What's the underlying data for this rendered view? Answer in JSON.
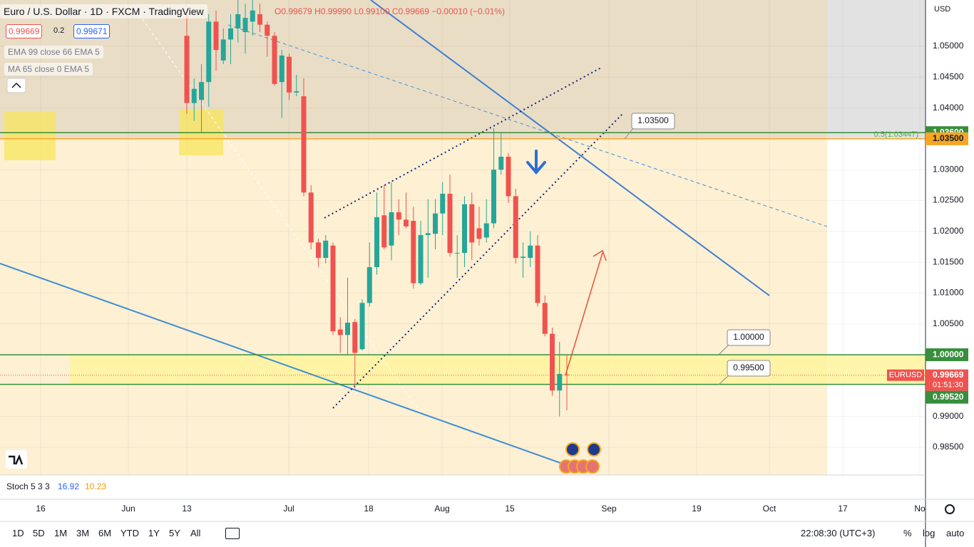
{
  "header": {
    "symbol": "Euro / U.S. Dollar · 1D · FXCM · TradingView",
    "open": "O0.99679",
    "high": "H0.99990",
    "low": "L0.99100",
    "close": "C0.99669",
    "change": "−0.00010 (−0.01%)",
    "sell": "0.99669",
    "spread": "0.2",
    "buy": "0.99671",
    "indicators": [
      "EMA 99 close 66 EMA 5",
      "MA 65 close 0 EMA 5"
    ]
  },
  "chart_data": {
    "type": "candlestick",
    "currency": "USD",
    "up_color": "#26a69a",
    "down_color": "#ef5350",
    "ylim": [
      0.9805,
      1.0575
    ],
    "yticks": [
      {
        "value": 1.05,
        "label": "1.05000"
      },
      {
        "value": 1.045,
        "label": "1.04500"
      },
      {
        "value": 1.04,
        "label": "1.04000"
      },
      {
        "value": 1.03,
        "label": "1.03000"
      },
      {
        "value": 1.025,
        "label": "1.02500"
      },
      {
        "value": 1.02,
        "label": "1.02000"
      },
      {
        "value": 1.015,
        "label": "1.01500"
      },
      {
        "value": 1.01,
        "label": "1.01000"
      },
      {
        "value": 1.005,
        "label": "1.00500"
      },
      {
        "value": 0.99,
        "label": "0.99000"
      },
      {
        "value": 0.985,
        "label": "0.98500"
      }
    ],
    "xticks": [
      "16",
      "Jun",
      "13",
      "Jul",
      "18",
      "Aug",
      "15",
      "Sep",
      "19",
      "Oct",
      "17",
      "No"
    ],
    "levels": [
      {
        "value": 1.036,
        "label": "1.03600",
        "color": "#388e3c"
      },
      {
        "value": 1.035,
        "label": "1.03500",
        "color": "#f5a623"
      },
      {
        "value": 1.0,
        "label": "1.00000",
        "color": "#388e3c"
      },
      {
        "value": 0.9952,
        "label": "0.99520",
        "color": "#388e3c"
      }
    ],
    "last": {
      "value": 0.99669,
      "label": "0.99669",
      "symbol": "EURUSD",
      "countdown": "01:51:30"
    },
    "fib_label": "0.5(1.03447)",
    "callouts": [
      "1.03500",
      "1.00000",
      "0.99500"
    ],
    "candles": [
      {
        "o": 1.0517,
        "h": 1.0552,
        "l": 1.039,
        "c": 1.0408
      },
      {
        "o": 1.0408,
        "h": 1.0448,
        "l": 1.0379,
        "c": 1.0431
      },
      {
        "o": 1.0413,
        "h": 1.0471,
        "l": 1.0361,
        "c": 1.0442
      },
      {
        "o": 1.0442,
        "h": 1.0552,
        "l": 1.0402,
        "c": 1.054
      },
      {
        "o": 1.054,
        "h": 1.0558,
        "l": 1.046,
        "c": 1.0494
      },
      {
        "o": 1.0477,
        "h": 1.0529,
        "l": 1.0471,
        "c": 1.0511
      },
      {
        "o": 1.0511,
        "h": 1.0552,
        "l": 1.0471,
        "c": 1.0529
      },
      {
        "o": 1.0529,
        "h": 1.0575,
        "l": 1.0506,
        "c": 1.0552
      },
      {
        "o": 1.0523,
        "h": 1.0569,
        "l": 1.0488,
        "c": 1.0546
      },
      {
        "o": 1.054,
        "h": 1.0575,
        "l": 1.0517,
        "c": 1.0558
      },
      {
        "o": 1.0552,
        "h": 1.0569,
        "l": 1.0523,
        "c": 1.0535
      },
      {
        "o": 1.0535,
        "h": 1.054,
        "l": 1.0483,
        "c": 1.0517
      },
      {
        "o": 1.0517,
        "h": 1.0523,
        "l": 1.0436,
        "c": 1.0439
      },
      {
        "o": 1.0442,
        "h": 1.0494,
        "l": 1.0384,
        "c": 1.0485
      },
      {
        "o": 1.0483,
        "h": 1.0488,
        "l": 1.0413,
        "c": 1.0425
      },
      {
        "o": 1.0425,
        "h": 1.0454,
        "l": 1.0419,
        "c": 1.0427
      },
      {
        "o": 1.0419,
        "h": 1.0448,
        "l": 1.0257,
        "c": 1.0263
      },
      {
        "o": 1.0263,
        "h": 1.0275,
        "l": 1.0171,
        "c": 1.0182
      },
      {
        "o": 1.0182,
        "h": 1.0188,
        "l": 1.0142,
        "c": 1.0157
      },
      {
        "o": 1.0157,
        "h": 1.0194,
        "l": 1.0148,
        "c": 1.0185
      },
      {
        "o": 1.0177,
        "h": 1.0182,
        "l": 1.0032,
        "c": 1.0038
      },
      {
        "o": 1.0041,
        "h": 1.0061,
        "l": 1.0003,
        "c": 1.0032
      },
      {
        "o": 1.0032,
        "h": 1.0125,
        "l": 1.0,
        "c": 1.0052
      },
      {
        "o": 1.0053,
        "h": 1.0058,
        "l": 0.9946,
        "c": 1.0003
      },
      {
        "o": 1.0009,
        "h": 1.009,
        "l": 1.0007,
        "c": 1.0084
      },
      {
        "o": 1.0084,
        "h": 1.0182,
        "l": 1.0078,
        "c": 1.0142
      },
      {
        "o": 1.0142,
        "h": 1.0263,
        "l": 1.013,
        "c": 1.0223
      },
      {
        "o": 1.0226,
        "h": 1.0275,
        "l": 1.0171,
        "c": 1.0174
      },
      {
        "o": 1.0177,
        "h": 1.028,
        "l": 1.0153,
        "c": 1.0231
      },
      {
        "o": 1.0231,
        "h": 1.0252,
        "l": 1.0194,
        "c": 1.0219
      },
      {
        "o": 1.0219,
        "h": 1.0263,
        "l": 1.0205,
        "c": 1.0208
      },
      {
        "o": 1.0217,
        "h": 1.024,
        "l": 1.0107,
        "c": 1.0116
      },
      {
        "o": 1.0116,
        "h": 1.0217,
        "l": 1.0113,
        "c": 1.0194
      },
      {
        "o": 1.0194,
        "h": 1.0252,
        "l": 1.0125,
        "c": 1.0197
      },
      {
        "o": 1.0196,
        "h": 1.0252,
        "l": 1.0171,
        "c": 1.0229
      },
      {
        "o": 1.0229,
        "h": 1.028,
        "l": 1.0194,
        "c": 1.0261
      },
      {
        "o": 1.0261,
        "h": 1.0292,
        "l": 1.0159,
        "c": 1.0165
      },
      {
        "o": 1.0165,
        "h": 1.0194,
        "l": 1.0125,
        "c": 1.0165
      },
      {
        "o": 1.0165,
        "h": 1.0257,
        "l": 1.0142,
        "c": 1.0244
      },
      {
        "o": 1.0244,
        "h": 1.0263,
        "l": 1.0153,
        "c": 1.0182
      },
      {
        "o": 1.0205,
        "h": 1.024,
        "l": 1.0177,
        "c": 1.0188
      },
      {
        "o": 1.019,
        "h": 1.0252,
        "l": 1.0182,
        "c": 1.0213
      },
      {
        "o": 1.0213,
        "h": 1.0367,
        "l": 1.0205,
        "c": 1.03
      },
      {
        "o": 1.03,
        "h": 1.0361,
        "l": 1.0292,
        "c": 1.0321
      },
      {
        "o": 1.0321,
        "h": 1.0327,
        "l": 1.0246,
        "c": 1.0257
      },
      {
        "o": 1.0257,
        "h": 1.0269,
        "l": 1.0148,
        "c": 1.0157
      },
      {
        "o": 1.0157,
        "h": 1.0182,
        "l": 1.0125,
        "c": 1.0159
      },
      {
        "o": 1.0157,
        "h": 1.02,
        "l": 1.0142,
        "c": 1.0177
      },
      {
        "o": 1.0177,
        "h": 1.0194,
        "l": 1.0078,
        "c": 1.0084
      },
      {
        "o": 1.0084,
        "h": 1.0096,
        "l": 1.003,
        "c": 1.0034
      },
      {
        "o": 1.0034,
        "h": 1.0044,
        "l": 0.9934,
        "c": 0.9942
      },
      {
        "o": 0.9942,
        "h": 1.0021,
        "l": 0.99,
        "c": 0.9969
      },
      {
        "o": 0.99679,
        "h": 0.9999,
        "l": 0.991,
        "c": 0.99669
      }
    ]
  },
  "stoch": {
    "name": "Stoch 5 3 3",
    "k": "16.92",
    "d": "10.23"
  },
  "toolbar": {
    "ranges": [
      "1D",
      "5D",
      "1M",
      "3M",
      "6M",
      "YTD",
      "1Y",
      "5Y",
      "All"
    ],
    "time": "22:08:30 (UTC+3)",
    "percent": "%",
    "log": "log",
    "auto": "auto"
  }
}
